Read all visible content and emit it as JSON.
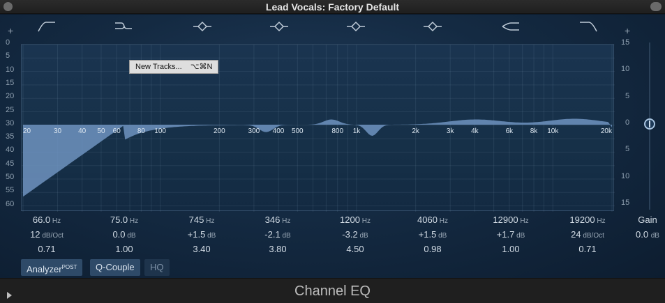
{
  "window": {
    "title": "Lead Vocals: Factory Default"
  },
  "band_icons": [
    "low-cut-icon",
    "low-shelf-icon",
    "bell-icon",
    "bell-icon",
    "bell-icon",
    "bell-icon",
    "high-shelf-icon",
    "high-cut-icon"
  ],
  "scale_left": [
    "0",
    "5",
    "10",
    "15",
    "20",
    "25",
    "30",
    "35",
    "40",
    "45",
    "50",
    "55",
    "60"
  ],
  "scale_right": [
    "15",
    "10",
    "5",
    "0",
    "5",
    "10",
    "15"
  ],
  "freq_labels": [
    "20",
    "30",
    "40",
    "50",
    "60",
    "80",
    "100",
    "200",
    "300",
    "400",
    "500",
    "800",
    "1k",
    "2k",
    "3k",
    "4k",
    "6k",
    "8k",
    "10k",
    "20k"
  ],
  "tooltip": {
    "label": "New Tracks...",
    "shortcut": "⌥⌘N"
  },
  "bands": [
    {
      "freq": "66.0",
      "freq_unit": "Hz",
      "gain": "12",
      "gain_unit": "dB/Oct",
      "q": "0.71"
    },
    {
      "freq": "75.0",
      "freq_unit": "Hz",
      "gain": "0.0",
      "gain_unit": "dB",
      "q": "1.00"
    },
    {
      "freq": "745",
      "freq_unit": "Hz",
      "gain": "+1.5",
      "gain_unit": "dB",
      "q": "3.40"
    },
    {
      "freq": "346",
      "freq_unit": "Hz",
      "gain": "-2.1",
      "gain_unit": "dB",
      "q": "3.80"
    },
    {
      "freq": "1200",
      "freq_unit": "Hz",
      "gain": "-3.2",
      "gain_unit": "dB",
      "q": "4.50"
    },
    {
      "freq": "4060",
      "freq_unit": "Hz",
      "gain": "+1.5",
      "gain_unit": "dB",
      "q": "0.98"
    },
    {
      "freq": "12900",
      "freq_unit": "Hz",
      "gain": "+1.7",
      "gain_unit": "dB",
      "q": "1.00"
    },
    {
      "freq": "19200",
      "freq_unit": "Hz",
      "gain": "24",
      "gain_unit": "dB/Oct",
      "q": "0.71"
    }
  ],
  "gain": {
    "label": "Gain",
    "value": "0.0",
    "unit": "dB"
  },
  "buttons": {
    "analyzer": "Analyzer",
    "analyzer_sup": "POST",
    "q_couple": "Q-Couple",
    "hq": "HQ"
  },
  "plus_left": "+",
  "plus_right": "+",
  "footer": {
    "title": "Channel EQ"
  },
  "colors": {
    "curve_fill": "#6f93bf",
    "accent": "#a8c4e0"
  }
}
